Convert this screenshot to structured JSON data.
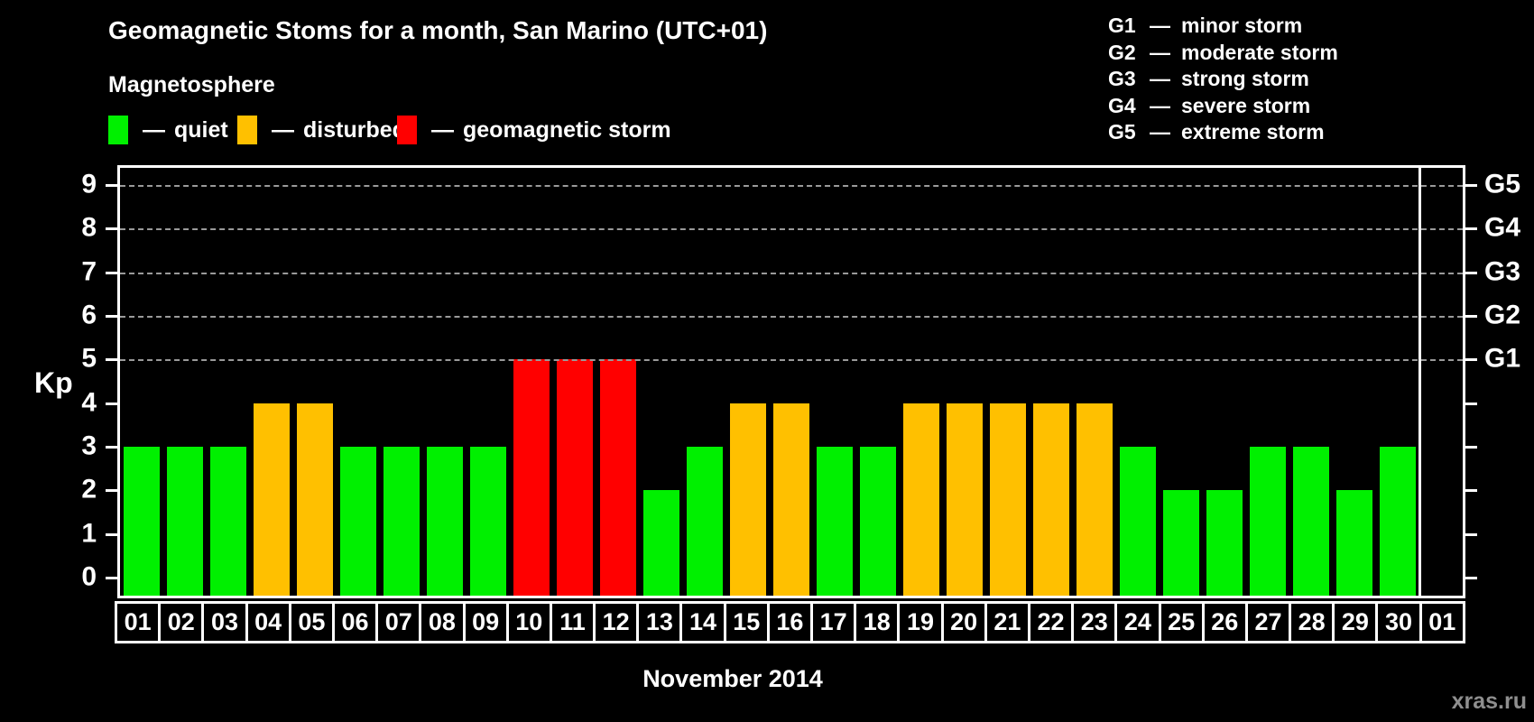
{
  "title": "Geomagnetic Stoms for a month, San Marino (UTC+01)",
  "watermark": "xras.ru",
  "legend": {
    "heading": "Magnetosphere",
    "dash": "—",
    "items": [
      {
        "label": "quiet",
        "status": "quiet",
        "color": "#00f000"
      },
      {
        "label": "disturbed",
        "status": "disturbed",
        "color": "#ffc000"
      },
      {
        "label": "geomagnetic storm",
        "status": "storm",
        "color": "#ff0000"
      }
    ]
  },
  "g_scale_legend": {
    "dash": "—",
    "items": [
      {
        "code": "G1",
        "label": "minor storm"
      },
      {
        "code": "G2",
        "label": "moderate storm"
      },
      {
        "code": "G3",
        "label": "strong storm"
      },
      {
        "code": "G4",
        "label": "severe storm"
      },
      {
        "code": "G5",
        "label": "extreme storm"
      }
    ]
  },
  "chart_data": {
    "type": "bar",
    "title": "Geomagnetic Stoms for a month, San Marino (UTC+01)",
    "xlabel": "November 2014",
    "ylabel": "Kp",
    "ylim": [
      0,
      9
    ],
    "grid": "horizontal dashed lines at Kp 5,6,7,8,9",
    "legend_position": "top-left (status colors) and top-right (G scale)",
    "categories": [
      "01",
      "02",
      "03",
      "04",
      "05",
      "06",
      "07",
      "08",
      "09",
      "10",
      "11",
      "12",
      "13",
      "14",
      "15",
      "16",
      "17",
      "18",
      "19",
      "20",
      "21",
      "22",
      "23",
      "24",
      "25",
      "26",
      "27",
      "28",
      "29",
      "30",
      "01"
    ],
    "values": [
      3,
      3,
      3,
      4,
      4,
      3,
      3,
      3,
      3,
      5,
      5,
      5,
      2,
      3,
      4,
      4,
      3,
      3,
      4,
      4,
      4,
      4,
      4,
      3,
      2,
      2,
      3,
      3,
      2,
      3,
      null
    ],
    "statuses": [
      "quiet",
      "quiet",
      "quiet",
      "disturbed",
      "disturbed",
      "quiet",
      "quiet",
      "quiet",
      "quiet",
      "storm",
      "storm",
      "storm",
      "quiet",
      "quiet",
      "disturbed",
      "disturbed",
      "quiet",
      "quiet",
      "disturbed",
      "disturbed",
      "disturbed",
      "disturbed",
      "disturbed",
      "quiet",
      "quiet",
      "quiet",
      "quiet",
      "quiet",
      "quiet",
      "quiet",
      null
    ],
    "colors": {
      "quiet": "#00f000",
      "disturbed": "#ffc000",
      "storm": "#ff0000"
    },
    "left_ticks": [
      "0",
      "1",
      "2",
      "3",
      "4",
      "5",
      "6",
      "7",
      "8",
      "9"
    ],
    "gridlines_kp": [
      5,
      6,
      7,
      8,
      9
    ],
    "right_axis_labels": [
      {
        "kp": 5,
        "label": "G1"
      },
      {
        "kp": 6,
        "label": "G2"
      },
      {
        "kp": 7,
        "label": "G3"
      },
      {
        "kp": 8,
        "label": "G4"
      },
      {
        "kp": 9,
        "label": "G5"
      }
    ]
  }
}
